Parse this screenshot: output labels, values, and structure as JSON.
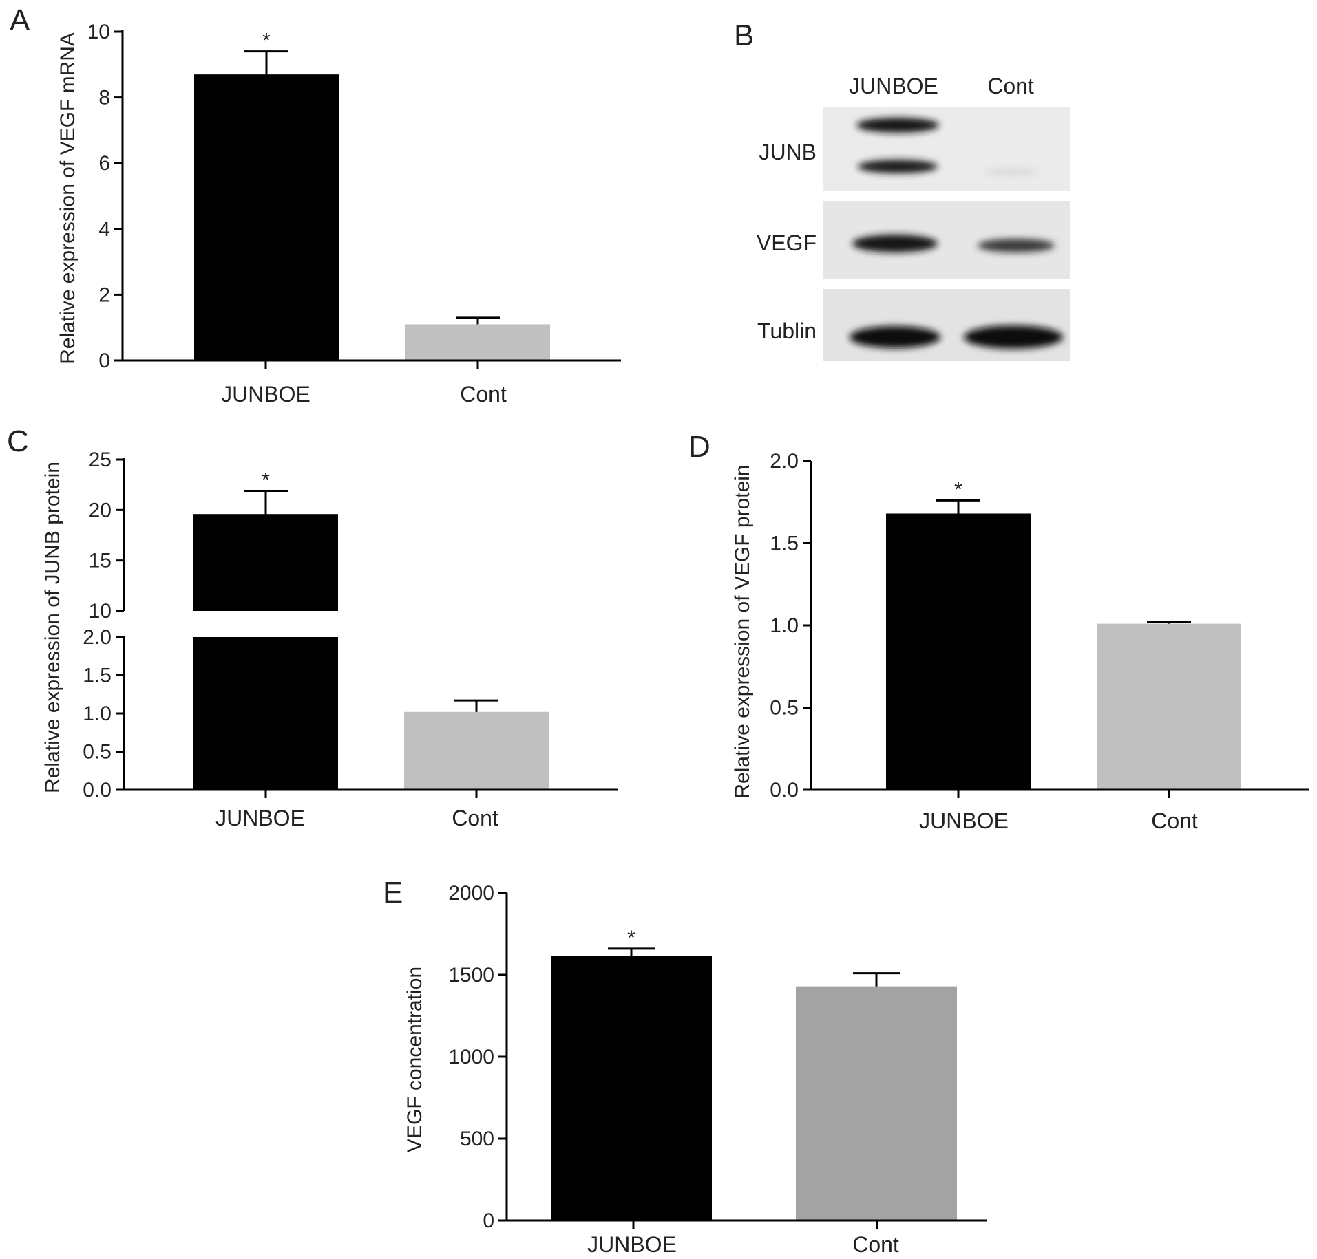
{
  "chart_data": [
    {
      "panel": "A",
      "type": "bar",
      "categories": [
        "JUNBOE",
        "Cont"
      ],
      "values": [
        8.7,
        1.1
      ],
      "errors": [
        0.7,
        0.2
      ],
      "significance": [
        "*",
        ""
      ],
      "bar_colors": [
        "#000000",
        "#c0c0c0"
      ],
      "ylabel": "Relative expression of VEGF mRNA",
      "ylim": [
        0,
        10
      ],
      "yticks": [
        "0",
        "2",
        "4",
        "6",
        "8",
        "10"
      ]
    },
    {
      "panel": "B",
      "type": "western-blot",
      "lanes": [
        "JUNBOE",
        "Cont"
      ],
      "rows": [
        "JUNB",
        "VEGF",
        "Tublin"
      ]
    },
    {
      "panel": "C",
      "type": "bar",
      "broken_axis": true,
      "categories": [
        "JUNBOE",
        "Cont"
      ],
      "values": [
        19.6,
        1.02
      ],
      "errors": [
        2.3,
        0.15
      ],
      "significance": [
        "*",
        ""
      ],
      "bar_colors": [
        "#000000",
        "#c0c0c0"
      ],
      "ylabel": "Relative expression of JUNB protein",
      "lower_ylim": [
        0,
        2.0
      ],
      "upper_ylim": [
        10,
        25
      ],
      "lower_yticks": [
        "0.0",
        "0.5",
        "1.0",
        "1.5",
        "2.0"
      ],
      "upper_yticks": [
        "10",
        "15",
        "20",
        "25"
      ]
    },
    {
      "panel": "D",
      "type": "bar",
      "categories": [
        "JUNBOE",
        "Cont"
      ],
      "values": [
        1.68,
        1.01
      ],
      "errors": [
        0.08,
        0.01
      ],
      "significance": [
        "*",
        ""
      ],
      "bar_colors": [
        "#000000",
        "#c0c0c0"
      ],
      "ylabel": "Relative expression of VEGF protein",
      "ylim": [
        0,
        2.0
      ],
      "yticks": [
        "0.0",
        "0.5",
        "1.0",
        "1.5",
        "2.0"
      ]
    },
    {
      "panel": "E",
      "type": "bar",
      "categories": [
        "JUNBOE",
        "Cont"
      ],
      "values": [
        1615,
        1430
      ],
      "errors": [
        45,
        80
      ],
      "significance": [
        "*",
        ""
      ],
      "bar_colors": [
        "#000000",
        "#a3a3a3"
      ],
      "ylabel": "VEGF concentration",
      "ylim": [
        0,
        2000
      ],
      "yticks": [
        "0",
        "500",
        "1000",
        "1500",
        "2000"
      ]
    }
  ]
}
